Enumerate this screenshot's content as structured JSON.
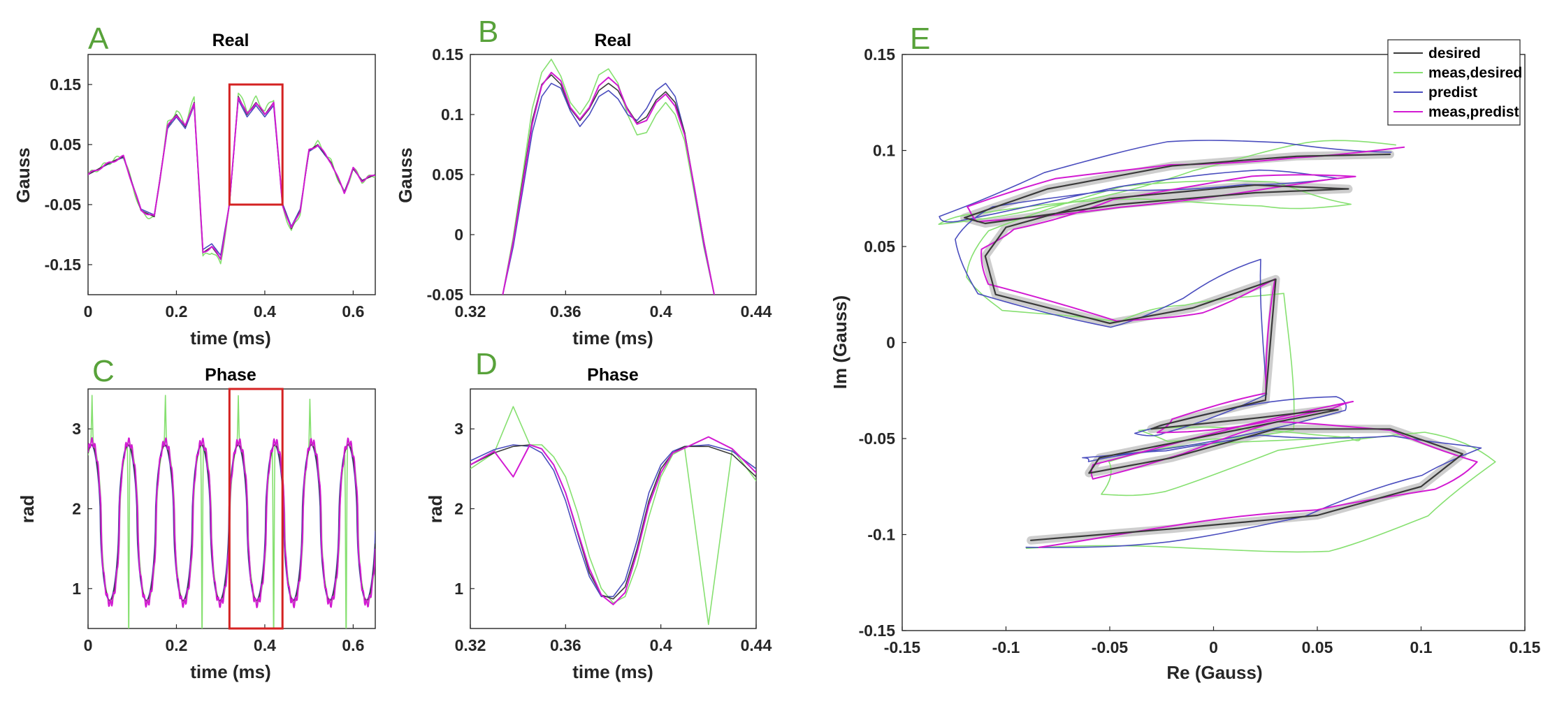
{
  "figure": {
    "panel_labels": [
      "A",
      "B",
      "C",
      "D",
      "E"
    ]
  },
  "colors": {
    "desired": "#3a3a3a",
    "meas_desired": "#86e070",
    "predist": "#4a4dbe",
    "meas_predist": "#d21ad2",
    "halo": "#c6c6c6",
    "zoom_box": "#d42222",
    "panel_label": "#58a23a"
  },
  "chart_data": [
    {
      "id": "A",
      "type": "line",
      "title": "Real",
      "xlabel": "time (ms)",
      "ylabel": "Gauss",
      "xlim": [
        0,
        0.65
      ],
      "ylim": [
        -0.2,
        0.2
      ],
      "xticks": [
        0,
        0.2,
        0.4,
        0.6
      ],
      "xtick_labels": [
        "0",
        "0.2",
        "0.4",
        "0.6"
      ],
      "yticks": [
        -0.15,
        -0.05,
        0.05,
        0.15
      ],
      "ytick_labels": [
        "-0.15",
        "-0.05",
        "0.05",
        "0.15"
      ],
      "zoom_box": {
        "x": [
          0.32,
          0.44
        ],
        "y": [
          -0.05,
          0.15
        ]
      },
      "series": [
        {
          "name": "desired",
          "x": [
            0,
            0.05,
            0.08,
            0.12,
            0.15,
            0.18,
            0.2,
            0.22,
            0.24,
            0.26,
            0.28,
            0.3,
            0.32,
            0.34,
            0.36,
            0.38,
            0.4,
            0.42,
            0.44,
            0.46,
            0.48,
            0.5,
            0.52,
            0.55,
            0.58,
            0.6,
            0.62,
            0.65
          ],
          "y": [
            0,
            0.02,
            0.03,
            -0.06,
            -0.07,
            0.08,
            0.1,
            0.08,
            0.12,
            -0.13,
            -0.12,
            -0.14,
            -0.05,
            0.13,
            0.1,
            0.12,
            0.1,
            0.12,
            -0.05,
            -0.09,
            -0.06,
            0.04,
            0.05,
            0.02,
            -0.03,
            0.01,
            -0.01,
            0
          ]
        }
      ]
    },
    {
      "id": "B",
      "type": "line",
      "title": "Real",
      "xlabel": "time (ms)",
      "ylabel": "Gauss",
      "xlim": [
        0.32,
        0.44
      ],
      "ylim": [
        -0.05,
        0.15
      ],
      "xticks": [
        0.32,
        0.36,
        0.4,
        0.44
      ],
      "xtick_labels": [
        "0.32",
        "0.36",
        "0.4",
        "0.44"
      ],
      "yticks": [
        -0.05,
        0,
        0.05,
        0.1,
        0.15
      ],
      "ytick_labels": [
        "-0.05",
        "0",
        "0.05",
        "0.1",
        "0.15"
      ],
      "x": [
        0.3336,
        0.338,
        0.342,
        0.346,
        0.35,
        0.354,
        0.358,
        0.362,
        0.366,
        0.37,
        0.374,
        0.378,
        0.382,
        0.386,
        0.39,
        0.394,
        0.398,
        0.402,
        0.406,
        0.41,
        0.414,
        0.418,
        0.4224
      ],
      "series": [
        {
          "name": "desired",
          "y": [
            -0.05,
            -0.005,
            0.045,
            0.095,
            0.125,
            0.133,
            0.125,
            0.105,
            0.095,
            0.105,
            0.12,
            0.126,
            0.12,
            0.105,
            0.093,
            0.098,
            0.112,
            0.119,
            0.11,
            0.085,
            0.04,
            -0.005,
            -0.05
          ]
        },
        {
          "name": "meas,desired",
          "y": [
            -0.05,
            -0.002,
            0.05,
            0.105,
            0.135,
            0.146,
            0.132,
            0.11,
            0.1,
            0.112,
            0.133,
            0.138,
            0.126,
            0.1,
            0.083,
            0.085,
            0.1,
            0.11,
            0.1,
            0.078,
            0.035,
            -0.01,
            -0.05
          ]
        },
        {
          "name": "predist",
          "y": [
            -0.05,
            -0.01,
            0.037,
            0.085,
            0.115,
            0.126,
            0.122,
            0.103,
            0.09,
            0.1,
            0.115,
            0.12,
            0.113,
            0.1,
            0.095,
            0.105,
            0.12,
            0.126,
            0.115,
            0.085,
            0.038,
            -0.008,
            -0.05
          ]
        },
        {
          "name": "meas,predist",
          "y": [
            -0.05,
            -0.006,
            0.042,
            0.092,
            0.124,
            0.135,
            0.128,
            0.106,
            0.096,
            0.106,
            0.124,
            0.131,
            0.124,
            0.104,
            0.092,
            0.095,
            0.11,
            0.117,
            0.107,
            0.083,
            0.04,
            -0.006,
            -0.05
          ]
        }
      ]
    },
    {
      "id": "C",
      "type": "line",
      "title": "Phase",
      "xlabel": "time (ms)",
      "ylabel": "rad",
      "xlim": [
        0,
        0.65
      ],
      "ylim": [
        0.5,
        3.5
      ],
      "xticks": [
        0,
        0.2,
        0.4,
        0.6
      ],
      "xtick_labels": [
        "0",
        "0.2",
        "0.4",
        "0.6"
      ],
      "yticks": [
        1,
        2,
        3
      ],
      "ytick_labels": [
        "1",
        "2",
        "3"
      ],
      "zoom_box": {
        "x": [
          0.32,
          0.44
        ],
        "y": [
          0.5,
          3.5
        ]
      },
      "oscillation": {
        "period_ms": 0.083,
        "max_rad": 2.8,
        "min_rad": 0.85
      }
    },
    {
      "id": "D",
      "type": "line",
      "title": "Phase",
      "xlabel": "time (ms)",
      "ylabel": "rad",
      "xlim": [
        0.32,
        0.44
      ],
      "ylim": [
        0.5,
        3.5
      ],
      "xticks": [
        0.32,
        0.36,
        0.4,
        0.44
      ],
      "xtick_labels": [
        "0.32",
        "0.36",
        "0.4",
        "0.44"
      ],
      "yticks": [
        1,
        2,
        3
      ],
      "ytick_labels": [
        "1",
        "2",
        "3"
      ],
      "x": [
        0.32,
        0.33,
        0.338,
        0.345,
        0.35,
        0.355,
        0.36,
        0.365,
        0.37,
        0.375,
        0.38,
        0.385,
        0.39,
        0.395,
        0.4,
        0.405,
        0.41,
        0.42,
        0.43,
        0.44
      ],
      "series": [
        {
          "name": "desired",
          "y": [
            2.55,
            2.7,
            2.78,
            2.8,
            2.75,
            2.55,
            2.2,
            1.7,
            1.2,
            0.92,
            0.87,
            1.02,
            1.5,
            2.1,
            2.5,
            2.7,
            2.78,
            2.78,
            2.68,
            2.4
          ]
        },
        {
          "name": "meas,desired",
          "y": [
            2.5,
            2.7,
            3.28,
            2.8,
            2.8,
            2.65,
            2.4,
            1.95,
            1.4,
            1.0,
            0.82,
            0.9,
            1.3,
            1.9,
            2.4,
            2.68,
            2.76,
            0.55,
            2.75,
            2.35
          ]
        },
        {
          "name": "predist",
          "y": [
            2.6,
            2.74,
            2.8,
            2.78,
            2.7,
            2.48,
            2.1,
            1.6,
            1.15,
            0.9,
            0.9,
            1.1,
            1.6,
            2.2,
            2.55,
            2.72,
            2.78,
            2.8,
            2.72,
            2.5
          ]
        },
        {
          "name": "meas,predist",
          "y": [
            2.55,
            2.72,
            2.4,
            2.8,
            2.75,
            2.55,
            2.2,
            1.72,
            1.25,
            0.92,
            0.8,
            0.95,
            1.45,
            2.05,
            2.45,
            2.7,
            2.76,
            2.9,
            2.75,
            2.45
          ]
        }
      ]
    },
    {
      "id": "E",
      "type": "line",
      "title": "",
      "xlabel": "Re (Gauss)",
      "ylabel": "Im (Gauss)",
      "xlim": [
        -0.15,
        0.15
      ],
      "ylim": [
        -0.15,
        0.15
      ],
      "xticks": [
        -0.15,
        -0.1,
        -0.05,
        0,
        0.05,
        0.1,
        0.15
      ],
      "xtick_labels": [
        "-0.15",
        "-0.1",
        "-0.05",
        "0",
        "0.05",
        "0.1",
        "0.15"
      ],
      "yticks": [
        -0.15,
        -0.1,
        -0.05,
        0,
        0.05,
        0.1,
        0.15
      ],
      "ytick_labels": [
        "-0.15",
        "-0.1",
        "-0.05",
        "0",
        "0.05",
        "0.1",
        "0.15"
      ],
      "legend": [
        "desired",
        "meas,desired",
        "predist",
        "meas,predist"
      ],
      "legend_location": "top-right",
      "series": [
        {
          "name": "desired",
          "x": [
            -0.088,
            -0.02,
            0.05,
            0.1,
            0.12,
            0.085,
            0.03,
            -0.02,
            -0.06,
            -0.055,
            0,
            0.06,
            0.055,
            0.015,
            -0.03,
            -0.025,
            0.025,
            0.03,
            -0.01,
            -0.05,
            -0.105,
            -0.11,
            -0.1,
            -0.05,
            0.02,
            0.065,
            0.02,
            -0.045,
            -0.11,
            -0.12,
            -0.08,
            -0.02,
            0.04,
            0.085
          ],
          "y": [
            -0.103,
            -0.097,
            -0.09,
            -0.075,
            -0.058,
            -0.045,
            -0.045,
            -0.06,
            -0.068,
            -0.06,
            -0.048,
            -0.035,
            -0.035,
            -0.04,
            -0.045,
            -0.043,
            -0.03,
            0.033,
            0.018,
            0.01,
            0.025,
            0.045,
            0.06,
            0.075,
            0.082,
            0.08,
            0.078,
            0.072,
            0.062,
            0.065,
            0.08,
            0.092,
            0.097,
            0.098
          ]
        }
      ]
    }
  ]
}
